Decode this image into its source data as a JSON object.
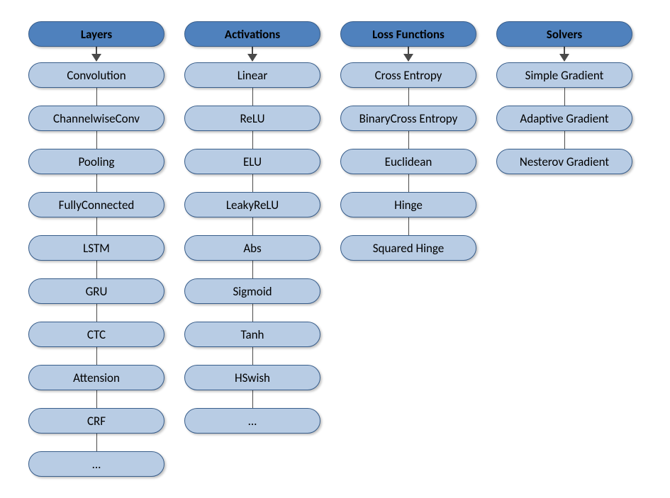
{
  "diagram": {
    "type": "tree",
    "background_color": "#ffffff",
    "column_gap": 28,
    "pill_height": 36,
    "pill_border_radius": 18,
    "font_family": "Calibri, Arial, sans-serif",
    "header_fontsize": 17,
    "header_fontweight": 700,
    "item_fontsize": 17,
    "item_fontweight": 400,
    "header_fill": "#4f81bd",
    "header_border": "#385d8a",
    "header_text_color": "#000000",
    "item_fill": "#b8cce4",
    "item_border": "#385d8a",
    "item_text_color": "#000000",
    "connector_color": "#4a4a4a",
    "arrow_height": 22,
    "connector_gap": 26,
    "shadow": "2px 2px 3px rgba(0,0,0,0.25)",
    "columns": [
      {
        "header": "Layers",
        "pill_width": 192,
        "items": [
          "Convolution",
          "ChannelwiseConv",
          "Pooling",
          "FullyConnected",
          "LSTM",
          "GRU",
          "CTC",
          "Attension",
          "CRF",
          "..."
        ]
      },
      {
        "header": "Activations",
        "pill_width": 192,
        "items": [
          "Linear",
          "ReLU",
          "ELU",
          "LeakyReLU",
          "Abs",
          "Sigmoid",
          "Tanh",
          "HSwish",
          "..."
        ]
      },
      {
        "header": "Loss Functions",
        "pill_width": 192,
        "items": [
          "Cross Entropy",
          "BinaryCross Entropy",
          "Euclidean",
          "Hinge",
          "Squared Hinge"
        ]
      },
      {
        "header": "Solvers",
        "pill_width": 192,
        "items": [
          "Simple Gradient",
          "Adaptive Gradient",
          "Nesterov Gradient"
        ]
      }
    ]
  }
}
